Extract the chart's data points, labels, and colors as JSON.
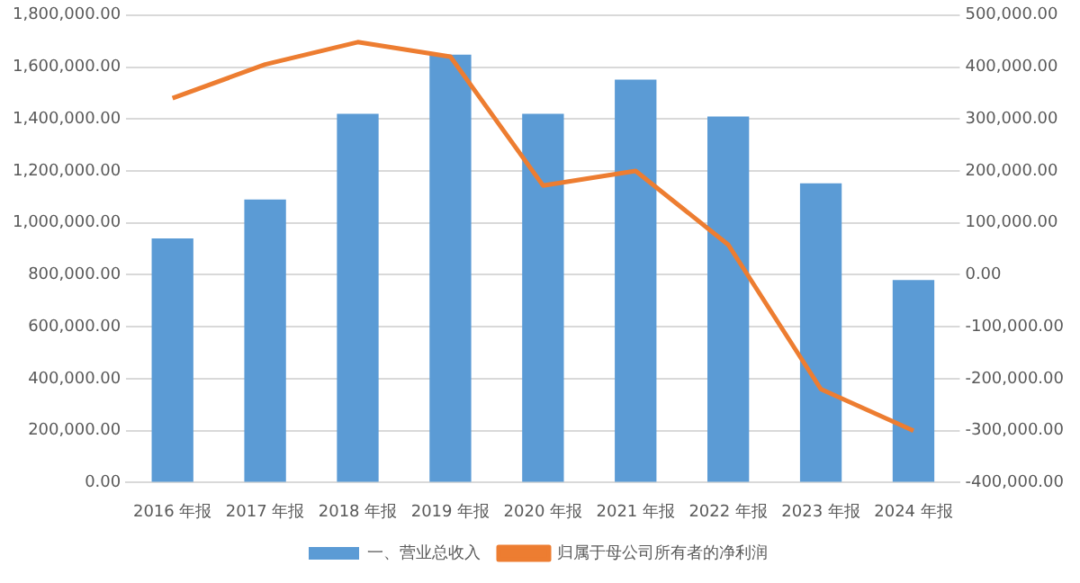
{
  "chart_data": {
    "type": "bar",
    "categories": [
      "2016 年报",
      "2017 年报",
      "2018 年报",
      "2019 年报",
      "2020 年报",
      "2021 年报",
      "2022 年报",
      "2023 年报",
      "2024 年报"
    ],
    "series": [
      {
        "name": "一、营业总收入",
        "color": "#5b9bd5",
        "values": [
          940000,
          1090000,
          1420000,
          1648000,
          1420000,
          1552000,
          1410000,
          1152000,
          780000
        ]
      },
      {
        "name": "归属于母公司所有者的净利润",
        "type": "line",
        "axis": "y2",
        "color": "#ed7d31",
        "marker": "none",
        "values": [
          340000,
          405000,
          448000,
          420000,
          172000,
          200000,
          58000,
          -220000,
          -300000
        ]
      }
    ],
    "ylim": [
      0,
      1800000
    ],
    "yticks": [
      {
        "value": 0,
        "label": "0.00"
      },
      {
        "value": 200000,
        "label": "200,000.00"
      },
      {
        "value": 400000,
        "label": "400,000.00"
      },
      {
        "value": 600000,
        "label": "600,000.00"
      },
      {
        "value": 800000,
        "label": "800,000.00"
      },
      {
        "value": 1000000,
        "label": "1,000,000.00"
      },
      {
        "value": 1200000,
        "label": "1,200,000.00"
      },
      {
        "value": 1400000,
        "label": "1,400,000.00"
      },
      {
        "value": 1600000,
        "label": "1,600,000.00"
      },
      {
        "value": 1800000,
        "label": "1,800,000.00"
      }
    ],
    "y2lim": [
      -400000,
      500000
    ],
    "y2ticks": [
      {
        "value": -400000,
        "label": "-400,000.00"
      },
      {
        "value": -300000,
        "label": "-300,000.00"
      },
      {
        "value": -200000,
        "label": "-200,000.00"
      },
      {
        "value": -100000,
        "label": "-100,000.00"
      },
      {
        "value": 0,
        "label": "0.00"
      },
      {
        "value": 100000,
        "label": "100,000.00"
      },
      {
        "value": 200000,
        "label": "200,000.00"
      },
      {
        "value": 300000,
        "label": "300,000.00"
      },
      {
        "value": 400000,
        "label": "400,000.00"
      },
      {
        "value": 500000,
        "label": "500,000.00"
      }
    ],
    "grid": "y",
    "legend": "bottom"
  }
}
